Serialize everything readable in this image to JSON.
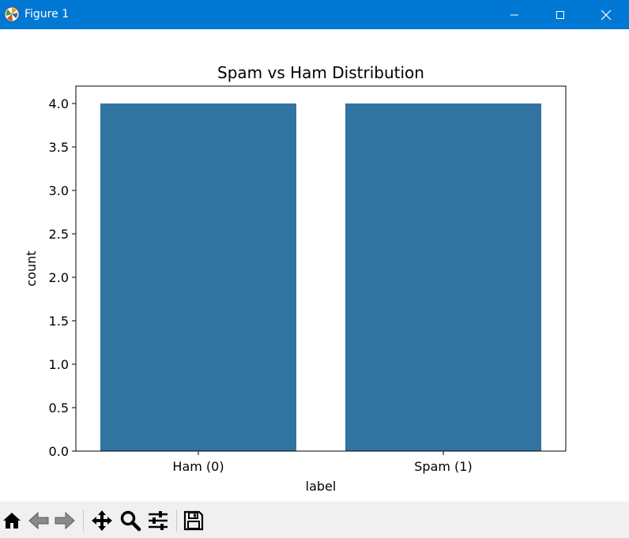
{
  "window": {
    "title": "Figure 1",
    "titlebar_color": "#0078d4",
    "controls": {
      "minimize_icon": "minimize-icon",
      "maximize_icon": "maximize-icon",
      "close_icon": "close-icon"
    }
  },
  "toolbar": {
    "tools": [
      {
        "name": "home",
        "icon": "home-icon"
      },
      {
        "name": "back",
        "icon": "back-arrow-icon"
      },
      {
        "name": "forward",
        "icon": "forward-arrow-icon"
      },
      {
        "name": "pan",
        "icon": "move-icon"
      },
      {
        "name": "zoom",
        "icon": "zoom-icon"
      },
      {
        "name": "configure-subplots",
        "icon": "sliders-icon"
      },
      {
        "name": "save",
        "icon": "save-icon"
      }
    ]
  },
  "chart_data": {
    "type": "bar",
    "title": "Spam vs Ham Distribution",
    "xlabel": "label",
    "ylabel": "count",
    "categories": [
      "Ham (0)",
      "Spam (1)"
    ],
    "values": [
      4,
      4
    ],
    "ylim": [
      0,
      4.2
    ],
    "yticks": [
      "0.0",
      "0.5",
      "1.0",
      "1.5",
      "2.0",
      "2.5",
      "3.0",
      "3.5",
      "4.0"
    ],
    "bar_color": "#3274a1",
    "grid": false
  }
}
